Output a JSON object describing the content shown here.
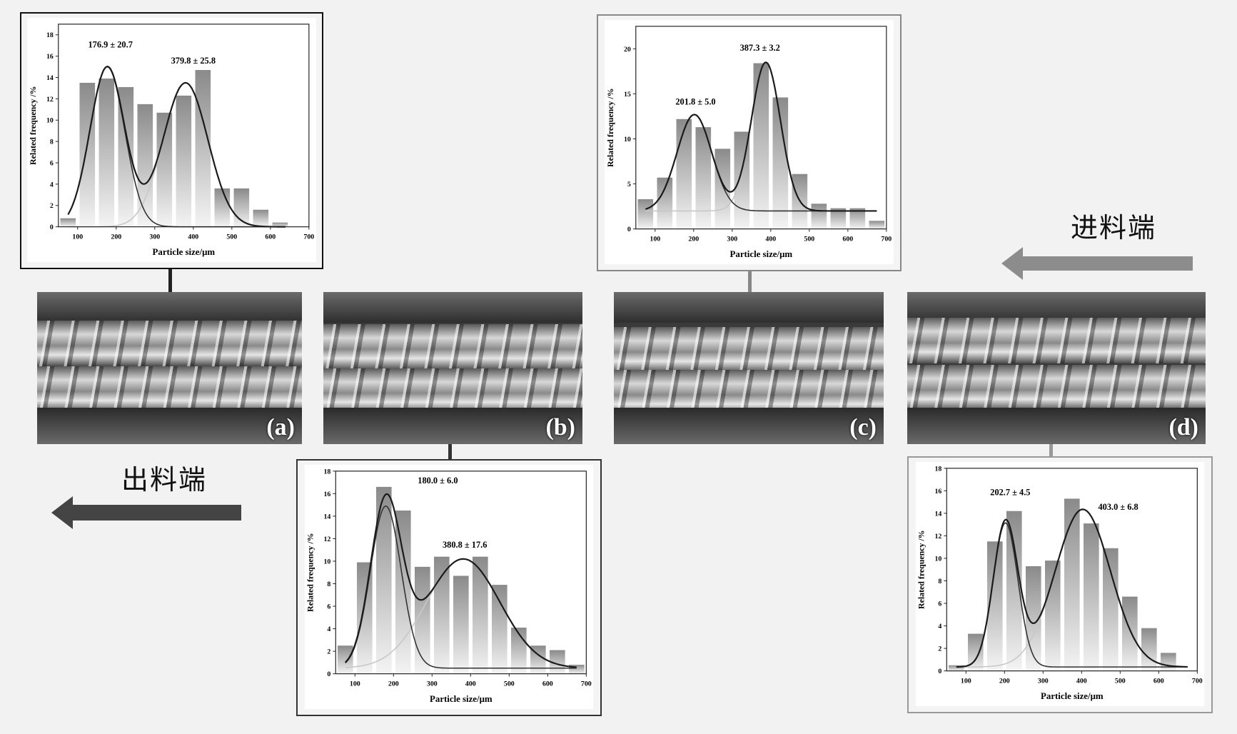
{
  "labels": {
    "outlet": "出料端",
    "inlet": "进料端"
  },
  "photos": [
    {
      "id": "a",
      "label": "(a)"
    },
    {
      "id": "b",
      "label": "(b)"
    },
    {
      "id": "c",
      "label": "(c)"
    },
    {
      "id": "d",
      "label": "(d)"
    }
  ],
  "colors": {
    "background": "#f2f2f2",
    "bar_top": "#8a8a8a",
    "bar_bottom": "#f4f4f4",
    "fit_line": "#1a1a1a",
    "component_light": "#c8c8c8",
    "outlet_arrow": "#444444",
    "inlet_arrow": "#8c8c8c"
  },
  "chart_data": [
    {
      "id": "a",
      "type": "bar",
      "xlabel": "Particle size/μm",
      "ylabel": "Related frequency /%",
      "xlim": [
        50,
        700
      ],
      "xticks": [
        100,
        200,
        300,
        400,
        500,
        600,
        700
      ],
      "ylim": [
        0,
        19
      ],
      "yticks": [
        0,
        2,
        4,
        6,
        8,
        10,
        12,
        14,
        16,
        18
      ],
      "bin_centers": [
        75,
        125,
        175,
        225,
        275,
        325,
        375,
        425,
        475,
        525,
        575,
        625
      ],
      "values": [
        0.8,
        13.5,
        13.9,
        13.1,
        11.5,
        10.7,
        12.3,
        14.7,
        3.6,
        3.6,
        1.6,
        0.4
      ],
      "annotations": [
        "176.9 ± 20.7",
        "379.8 ± 25.8"
      ],
      "fit": {
        "baseline": 0,
        "range": [
          75,
          640
        ],
        "peaks": [
          {
            "mean": 176.9,
            "amp": 15.0,
            "sigma": 45
          },
          {
            "mean": 379.8,
            "amp": 13.5,
            "sigma": 58
          }
        ]
      }
    },
    {
      "id": "b",
      "type": "bar",
      "xlabel": "Particle size/μm",
      "ylabel": "Related frequency /%",
      "xlim": [
        50,
        700
      ],
      "xticks": [
        100,
        200,
        300,
        400,
        500,
        600,
        700
      ],
      "ylim": [
        0,
        18
      ],
      "yticks": [
        0,
        2,
        4,
        6,
        8,
        10,
        12,
        14,
        16,
        18
      ],
      "bin_centers": [
        75,
        125,
        175,
        225,
        275,
        325,
        375,
        425,
        475,
        525,
        575,
        625,
        675
      ],
      "values": [
        2.5,
        9.9,
        16.6,
        14.5,
        9.5,
        10.4,
        8.7,
        10.4,
        7.9,
        4.1,
        2.5,
        2.1,
        0.8
      ],
      "annotations": [
        "180.0 ± 6.0",
        "380.8 ± 17.6"
      ],
      "fit": {
        "baseline": 0.5,
        "range": [
          75,
          675
        ],
        "peaks": [
          {
            "mean": 180.0,
            "amp": 14.4,
            "sigma": 40
          },
          {
            "mean": 380.8,
            "amp": 9.7,
            "sigma": 95
          }
        ]
      }
    },
    {
      "id": "c",
      "type": "bar",
      "xlabel": "Particle size/μm",
      "ylabel": "Related frequency /%",
      "xlim": [
        50,
        700
      ],
      "xticks": [
        100,
        200,
        300,
        400,
        500,
        600,
        700
      ],
      "ylim": [
        0,
        22.5
      ],
      "yticks": [
        0,
        5,
        10,
        15,
        20
      ],
      "bin_centers": [
        75,
        125,
        175,
        225,
        275,
        325,
        375,
        425,
        475,
        525,
        575,
        625,
        675
      ],
      "values": [
        3.3,
        5.7,
        12.2,
        11.3,
        8.9,
        10.8,
        18.4,
        14.6,
        6.1,
        2.8,
        2.3,
        2.3,
        0.9
      ],
      "annotations": [
        "201.8 ± 5.0",
        "387.3 ± 3.2"
      ],
      "fit": {
        "baseline": 2.0,
        "range": [
          75,
          675
        ],
        "peaks": [
          {
            "mean": 201.8,
            "amp": 10.7,
            "sigma": 45
          },
          {
            "mean": 387.3,
            "amp": 16.5,
            "sigma": 38
          }
        ]
      }
    },
    {
      "id": "d",
      "type": "bar",
      "xlabel": "Particle size/μm",
      "ylabel": "Related frequency /%",
      "xlim": [
        50,
        700
      ],
      "xticks": [
        100,
        200,
        300,
        400,
        500,
        600,
        700
      ],
      "ylim": [
        0,
        18
      ],
      "yticks": [
        0,
        2,
        4,
        6,
        8,
        10,
        12,
        14,
        16,
        18
      ],
      "bin_centers": [
        75,
        125,
        175,
        225,
        275,
        325,
        375,
        425,
        475,
        525,
        575,
        625
      ],
      "values": [
        0.5,
        3.3,
        11.5,
        14.2,
        9.3,
        9.8,
        15.3,
        13.1,
        10.9,
        6.6,
        3.8,
        1.6
      ],
      "annotations": [
        "202.7 ± 4.5",
        "403.0 ± 6.8"
      ],
      "fit": {
        "baseline": 0.35,
        "range": [
          75,
          675
        ],
        "peaks": [
          {
            "mean": 202.7,
            "amp": 12.8,
            "sigma": 32
          },
          {
            "mean": 403.0,
            "amp": 14.0,
            "sigma": 72
          }
        ]
      }
    }
  ]
}
